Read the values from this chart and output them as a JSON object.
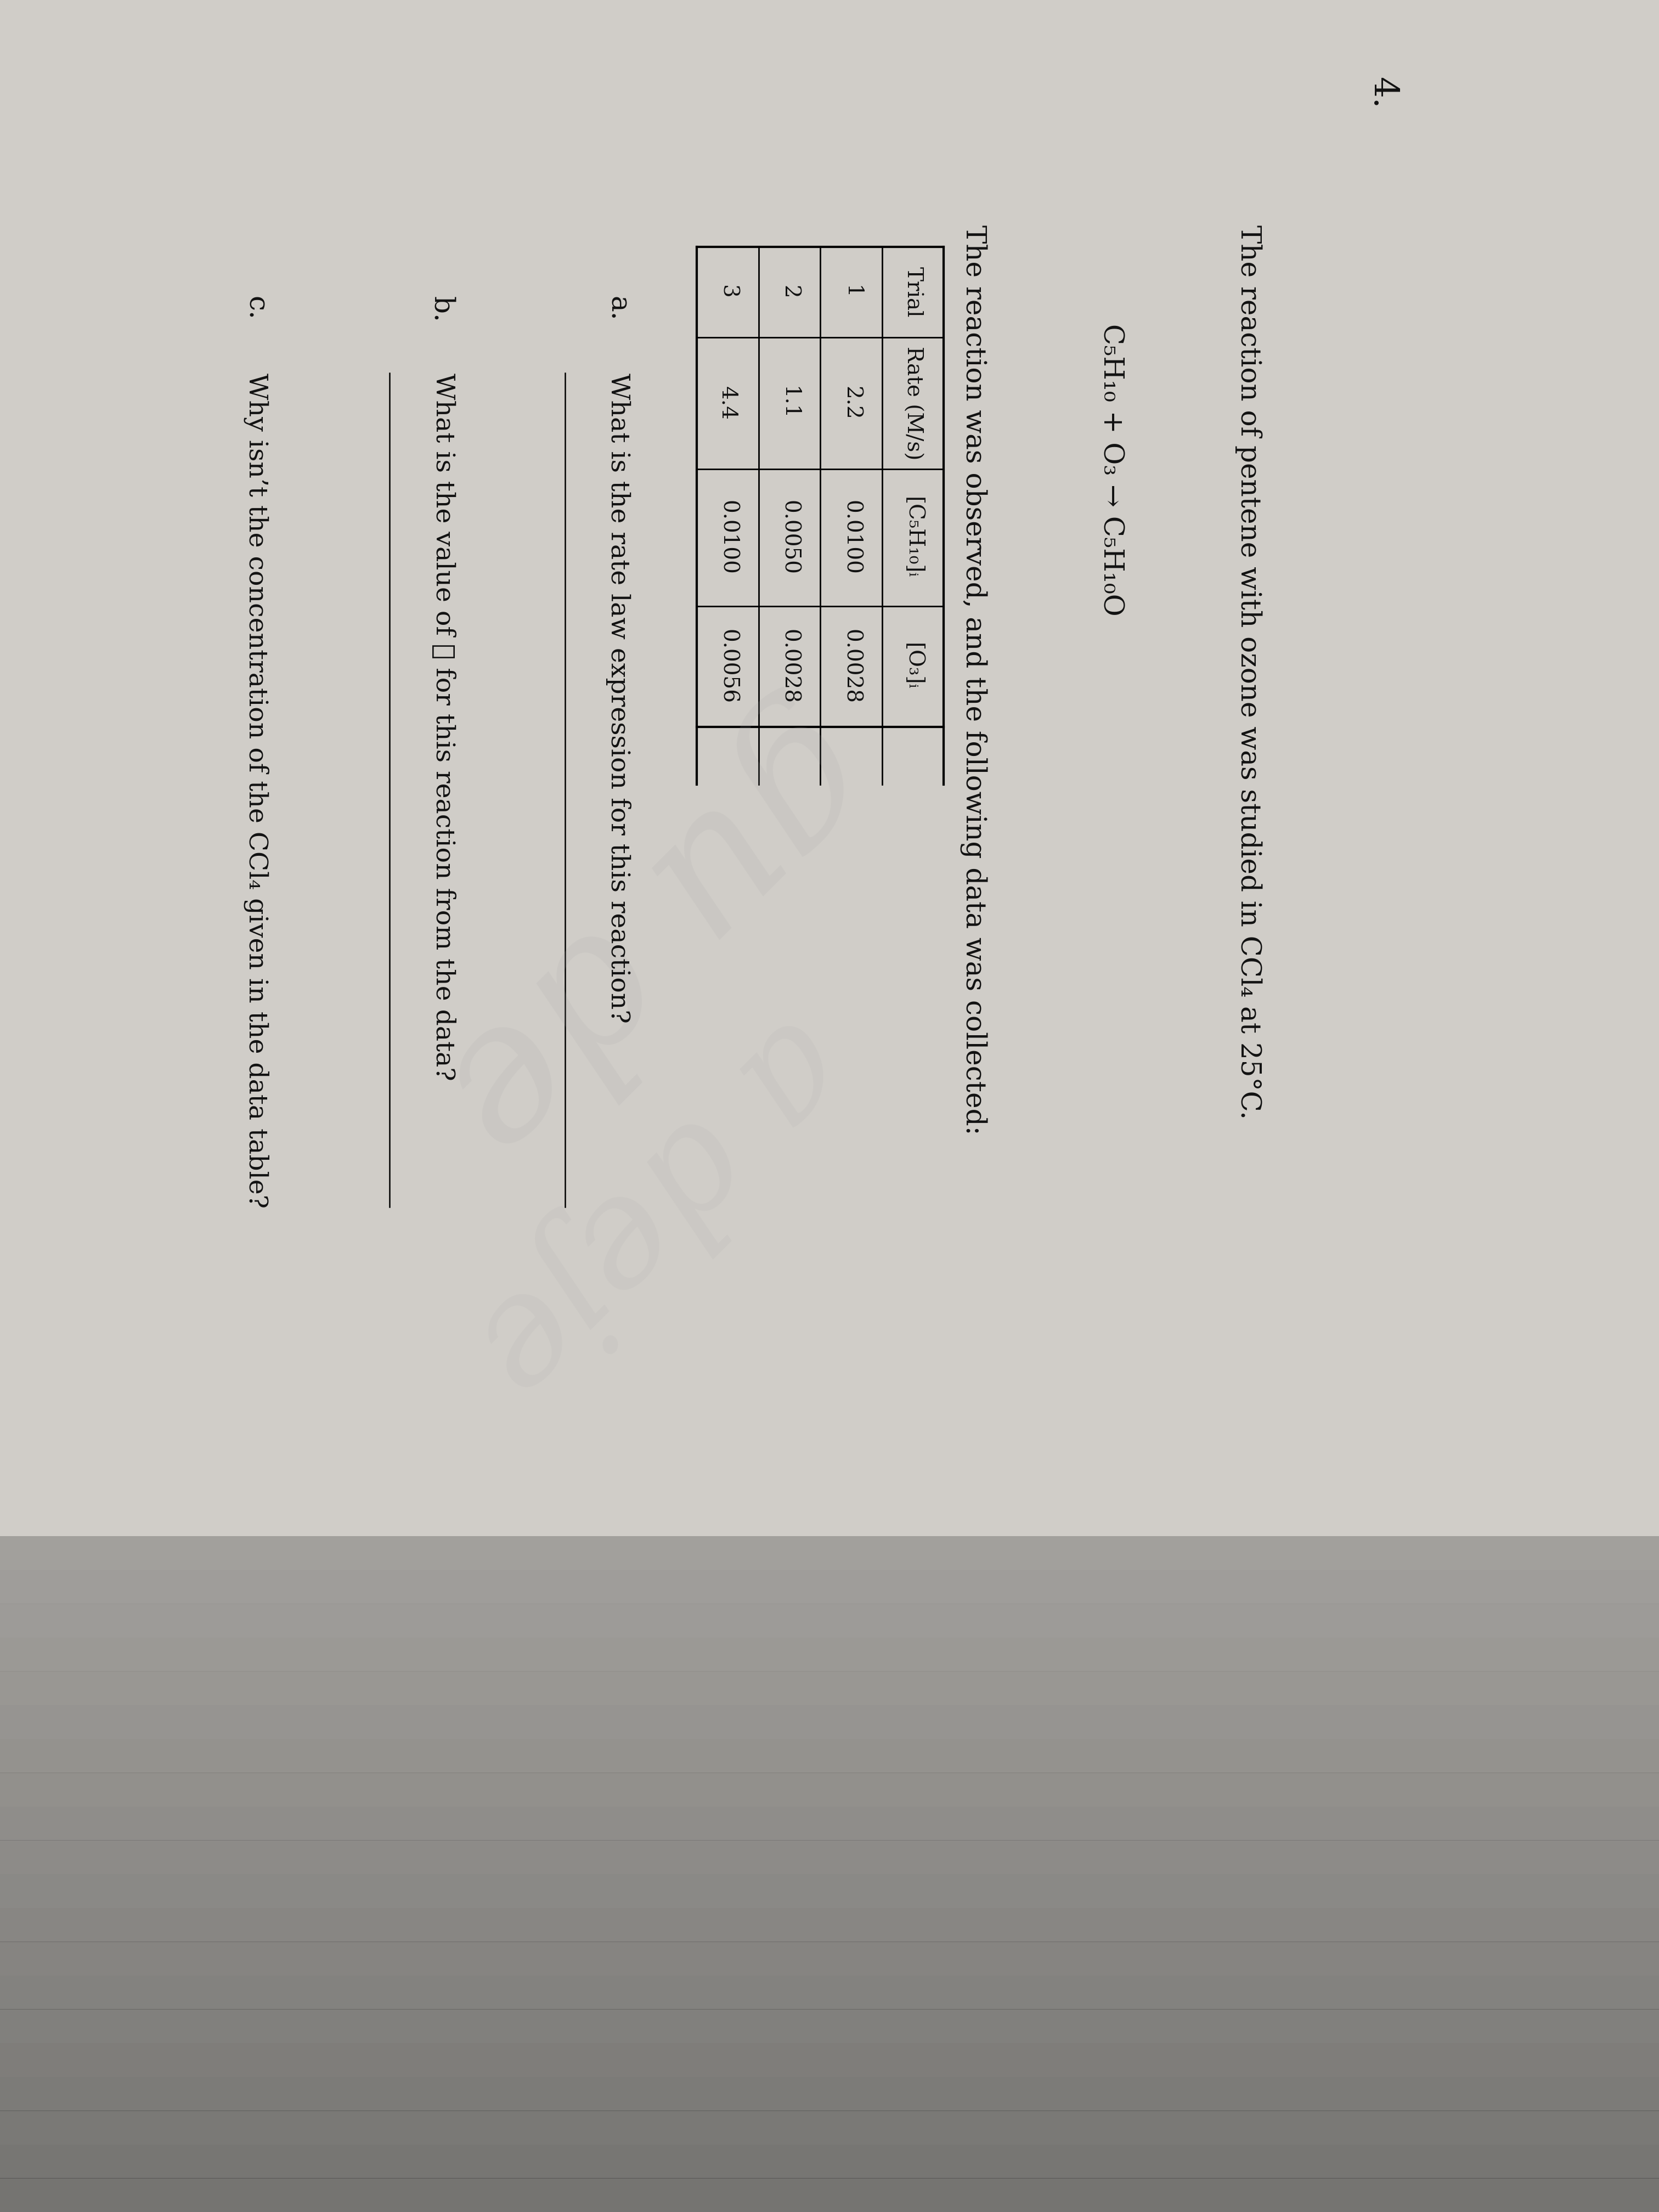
{
  "bg_color": "#d0cdc8",
  "text_color": "#111111",
  "title_num": "4.",
  "line1": "The reaction of pentene with ozone was studied in CCl₄ at 25°C.",
  "equation": "C₅H₁₀ + O₃ → C₅H₁₀O",
  "line2": "The reaction was observed, and the following data was collected:",
  "table_headers": [
    "Trial",
    "Rate (M/s)",
    "[C₅H₁₀]ᵢ",
    "[O₃]ᵢ"
  ],
  "table_data": [
    [
      "1",
      "2.2",
      "0.0100",
      "0.0028"
    ],
    [
      "2",
      "1.1",
      "0.0050",
      "0.0028"
    ],
    [
      "3",
      "4.4",
      "0.0100",
      "0.0056"
    ]
  ],
  "q_a_label": "a.",
  "q_a_text": "What is the rate law expression for this reaction?",
  "q_b_label": "b.",
  "q_b_text": "What is the value of ℓ for this reaction from the data?",
  "q_c_label": "c.",
  "q_c_text": "Why isn’t the concentration of the CCl₄ given in the data table?",
  "watermark_text": "gu de\na deje",
  "shadow_bottom": true
}
